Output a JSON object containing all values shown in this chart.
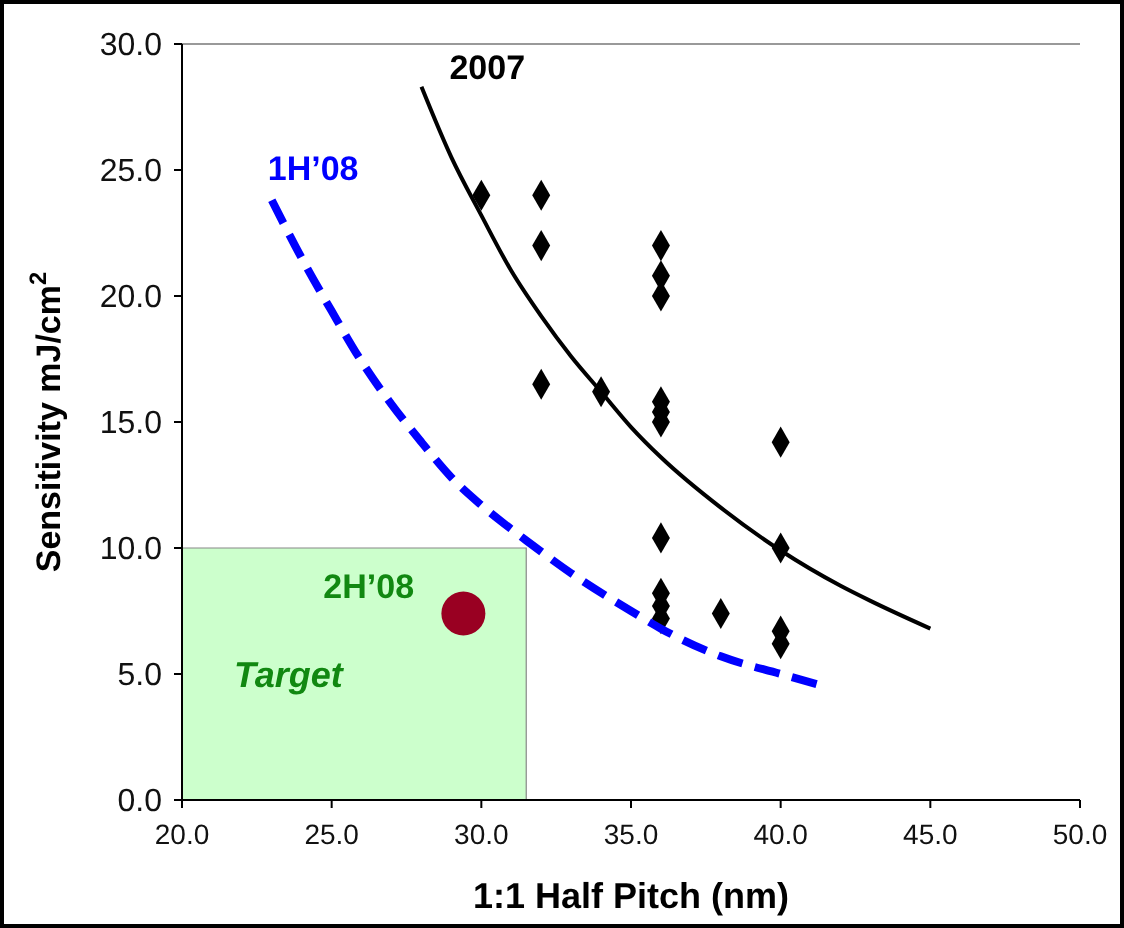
{
  "chart_data": {
    "type": "scatter",
    "xlabel": "1:1 Half Pitch (nm)",
    "ylabel": "Sensitivity mJ/cm$^{2}$",
    "xlim": [
      20,
      50
    ],
    "ylim": [
      0,
      30
    ],
    "xticks": [
      {
        "value": 20,
        "label": "20.0"
      },
      {
        "value": 25,
        "label": "25.0"
      },
      {
        "value": 30,
        "label": "30.0"
      },
      {
        "value": 35,
        "label": "35.0"
      },
      {
        "value": 40,
        "label": "40.0"
      },
      {
        "value": 45,
        "label": "45.0"
      },
      {
        "value": 50,
        "label": "50.0"
      }
    ],
    "yticks": [
      {
        "value": 0,
        "label": "0.0"
      },
      {
        "value": 5,
        "label": "5.0"
      },
      {
        "value": 10,
        "label": "10.0"
      },
      {
        "value": 15,
        "label": "15.0"
      },
      {
        "value": 20,
        "label": "20.0"
      },
      {
        "value": 25,
        "label": "25.0"
      },
      {
        "value": 30,
        "label": "30.0"
      }
    ],
    "grid": false,
    "series": [
      {
        "name": "Target",
        "type": "area",
        "color": "#ccffcc",
        "x": [
          20,
          31.5
        ],
        "values": [
          10,
          10
        ]
      },
      {
        "marker": "diamond",
        "color": "#000000",
        "x": [
          30,
          32,
          32,
          32,
          34,
          36,
          36,
          36,
          36,
          36,
          36,
          36,
          36,
          36,
          36,
          38,
          40,
          40,
          40,
          40
        ],
        "values": [
          24,
          24,
          22,
          16.5,
          16.2,
          22,
          20.8,
          20,
          15.8,
          15.4,
          15,
          10.4,
          8.2,
          7.7,
          7.2,
          7.4,
          14.2,
          10,
          6.7,
          6.2
        ]
      },
      {
        "name": "2007",
        "type": "line",
        "line_style": "solid",
        "color": "#000000",
        "x": [
          28,
          29,
          30,
          31,
          32,
          33,
          34,
          35,
          36,
          38,
          40,
          42,
          43,
          45
        ],
        "values": [
          28.3,
          25.5,
          23.2,
          21,
          19.2,
          17.6,
          16.2,
          14.8,
          13.6,
          11.6,
          9.9,
          8.5,
          7.9,
          6.8
        ]
      },
      {
        "name": "1H’08",
        "type": "line",
        "line_style": "dashed",
        "color": "#0000ff",
        "x": [
          23,
          24,
          25,
          26,
          27,
          28,
          29,
          30,
          31.5,
          33,
          35,
          36,
          38,
          40,
          41.2
        ],
        "values": [
          23.8,
          21.5,
          19.4,
          17.4,
          15.7,
          14.2,
          12.8,
          11.7,
          10.3,
          9,
          7.5,
          6.8,
          5.7,
          5,
          4.6
        ]
      },
      {
        "name": "2H’08",
        "type": "scatter",
        "marker": "circle",
        "color": "#990022",
        "x": [
          29.4
        ],
        "values": [
          7.4
        ]
      }
    ]
  }
}
